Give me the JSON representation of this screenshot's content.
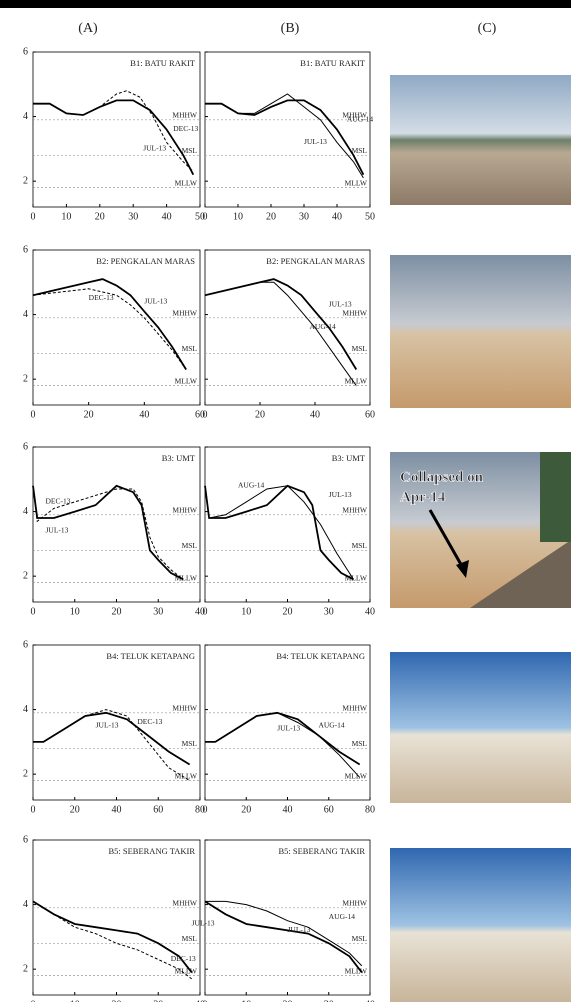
{
  "columns": [
    "(A)",
    "(B)",
    "(C)"
  ],
  "photo_annotation": [
    "Collapsed on",
    "Apr-14"
  ],
  "chart_data": [
    {
      "type": "line",
      "title": "B1: BATU RAKIT",
      "xlim": [
        0,
        50
      ],
      "xticks": [
        0,
        10,
        20,
        30,
        40,
        50
      ],
      "ylim": [
        1.2,
        6
      ],
      "yticks": [
        2,
        4,
        6
      ],
      "reference_lines": [
        {
          "label": "MHHW",
          "value": 3.9
        },
        {
          "label": "MSL",
          "value": 2.8
        },
        {
          "label": "MLLW",
          "value": 1.8
        }
      ],
      "series": [
        {
          "name": "JUL-13",
          "color": "#000000",
          "style": "solid",
          "x": [
            0,
            5,
            10,
            15,
            20,
            25,
            30,
            35,
            40,
            45,
            48
          ],
          "values": [
            4.4,
            4.4,
            4.1,
            4.05,
            4.3,
            4.5,
            4.5,
            4.2,
            3.6,
            2.8,
            2.2
          ]
        },
        {
          "name": "DEC-13",
          "color": "#000000",
          "style": "dashed",
          "x": [
            0,
            5,
            10,
            15,
            20,
            25,
            28,
            32,
            36,
            40,
            45,
            48
          ],
          "values": [
            4.4,
            4.4,
            4.1,
            4.05,
            4.3,
            4.7,
            4.8,
            4.6,
            4.0,
            3.2,
            2.6,
            2.3
          ]
        }
      ]
    },
    {
      "type": "line",
      "title": "B1: BATU RAKIT",
      "xlim": [
        0,
        50
      ],
      "xticks": [
        0,
        10,
        20,
        30,
        40,
        50
      ],
      "ylim": [
        1.2,
        6
      ],
      "yticks": [
        2,
        4,
        6
      ],
      "reference_lines": [
        {
          "label": "MHHW",
          "value": 3.9
        },
        {
          "label": "MSL",
          "value": 2.8
        },
        {
          "label": "MLLW",
          "value": 1.8
        }
      ],
      "series": [
        {
          "name": "JUL-13",
          "color": "#000000",
          "style": "solid",
          "x": [
            0,
            5,
            10,
            15,
            20,
            25,
            30,
            35,
            40,
            45,
            48
          ],
          "values": [
            4.4,
            4.4,
            4.1,
            4.05,
            4.3,
            4.5,
            4.5,
            4.2,
            3.6,
            2.8,
            2.2
          ]
        },
        {
          "name": "AUG-14",
          "color": "#000000",
          "style": "thin",
          "x": [
            0,
            5,
            10,
            15,
            20,
            25,
            30,
            35,
            40,
            45,
            48
          ],
          "values": [
            4.4,
            4.4,
            4.1,
            4.1,
            4.4,
            4.7,
            4.3,
            3.9,
            3.2,
            2.6,
            2.1
          ]
        }
      ]
    },
    {
      "type": "line",
      "title": "B2: PENGKALAN MARAS",
      "xlim": [
        0,
        60
      ],
      "xticks": [
        0,
        20,
        40,
        60
      ],
      "ylim": [
        1.2,
        6
      ],
      "yticks": [
        2,
        4,
        6
      ],
      "reference_lines": [
        {
          "label": "MHHW",
          "value": 3.9
        },
        {
          "label": "MSL",
          "value": 2.8
        },
        {
          "label": "MLLW",
          "value": 1.8
        }
      ],
      "series": [
        {
          "name": "JUL-13",
          "color": "#000000",
          "style": "solid",
          "x": [
            0,
            10,
            20,
            25,
            30,
            35,
            40,
            45,
            50,
            55
          ],
          "values": [
            4.6,
            4.8,
            5.0,
            5.1,
            4.9,
            4.6,
            4.1,
            3.6,
            3.0,
            2.3
          ]
        },
        {
          "name": "DEC-13",
          "color": "#000000",
          "style": "dashed",
          "x": [
            0,
            10,
            20,
            25,
            30,
            35,
            40,
            45,
            50,
            55
          ],
          "values": [
            4.6,
            4.7,
            4.8,
            4.7,
            4.6,
            4.3,
            3.9,
            3.4,
            2.9,
            2.3
          ]
        }
      ]
    },
    {
      "type": "line",
      "title": "B2: PENGKALAN MARAS",
      "xlim": [
        0,
        60
      ],
      "xticks": [
        0,
        20,
        40,
        60
      ],
      "ylim": [
        1.2,
        6
      ],
      "yticks": [
        2,
        4,
        6
      ],
      "reference_lines": [
        {
          "label": "MHHW",
          "value": 3.9
        },
        {
          "label": "MSL",
          "value": 2.8
        },
        {
          "label": "MLLW",
          "value": 1.8
        }
      ],
      "series": [
        {
          "name": "JUL-13",
          "color": "#000000",
          "style": "solid",
          "x": [
            0,
            10,
            20,
            25,
            30,
            35,
            40,
            45,
            50,
            55
          ],
          "values": [
            4.6,
            4.8,
            5.0,
            5.1,
            4.9,
            4.6,
            4.1,
            3.6,
            3.0,
            2.3
          ]
        },
        {
          "name": "AUG-14",
          "color": "#000000",
          "style": "thin",
          "x": [
            0,
            10,
            20,
            25,
            30,
            35,
            40,
            45,
            50,
            55
          ],
          "values": [
            4.6,
            4.8,
            5.0,
            5.0,
            4.6,
            4.1,
            3.6,
            3.0,
            2.4,
            1.8
          ]
        }
      ]
    },
    {
      "type": "line",
      "title": "B3: UMT",
      "xlim": [
        0,
        40
      ],
      "xticks": [
        0,
        10,
        20,
        30,
        40
      ],
      "ylim": [
        1.2,
        6
      ],
      "yticks": [
        2,
        4,
        6
      ],
      "reference_lines": [
        {
          "label": "MHHW",
          "value": 3.9
        },
        {
          "label": "MSL",
          "value": 2.8
        },
        {
          "label": "MLLW",
          "value": 1.8
        }
      ],
      "series": [
        {
          "name": "JUL-13",
          "color": "#000000",
          "style": "solid",
          "x": [
            0,
            1,
            5,
            10,
            15,
            20,
            24,
            26,
            28,
            30,
            33,
            36
          ],
          "values": [
            4.8,
            3.8,
            3.8,
            4.0,
            4.2,
            4.8,
            4.6,
            4.2,
            2.8,
            2.5,
            2.1,
            1.9
          ]
        },
        {
          "name": "DEC-13",
          "color": "#000000",
          "style": "dashed",
          "x": [
            0,
            1,
            5,
            10,
            15,
            20,
            24,
            26,
            28,
            30,
            33,
            36
          ],
          "values": [
            4.8,
            3.7,
            4.1,
            4.3,
            4.5,
            4.7,
            4.7,
            4.3,
            3.2,
            2.6,
            2.2,
            1.9
          ]
        }
      ]
    },
    {
      "type": "line",
      "title": "B3: UMT",
      "xlim": [
        0,
        40
      ],
      "xticks": [
        0,
        10,
        20,
        30,
        40
      ],
      "ylim": [
        1.2,
        6
      ],
      "yticks": [
        2,
        4,
        6
      ],
      "reference_lines": [
        {
          "label": "MHHW",
          "value": 3.9
        },
        {
          "label": "MSL",
          "value": 2.8
        },
        {
          "label": "MLLW",
          "value": 1.8
        }
      ],
      "series": [
        {
          "name": "JUL-13",
          "color": "#000000",
          "style": "solid",
          "x": [
            0,
            1,
            5,
            10,
            15,
            20,
            24,
            26,
            28,
            30,
            33,
            36
          ],
          "values": [
            4.8,
            3.8,
            3.8,
            4.0,
            4.2,
            4.8,
            4.6,
            4.2,
            2.8,
            2.5,
            2.1,
            1.9
          ]
        },
        {
          "name": "AUG-14",
          "color": "#000000",
          "style": "thin",
          "x": [
            0,
            1,
            5,
            10,
            15,
            20,
            24,
            28,
            32,
            36
          ],
          "values": [
            4.8,
            3.8,
            3.9,
            4.3,
            4.7,
            4.8,
            4.3,
            3.6,
            2.7,
            1.9
          ]
        }
      ]
    },
    {
      "type": "line",
      "title": "B4: TELUK KETAPANG",
      "xlim": [
        0,
        80
      ],
      "xticks": [
        0,
        20,
        40,
        60,
        80
      ],
      "ylim": [
        1.2,
        6
      ],
      "yticks": [
        2,
        4,
        6
      ],
      "reference_lines": [
        {
          "label": "MHHW",
          "value": 3.9
        },
        {
          "label": "MSL",
          "value": 2.8
        },
        {
          "label": "MLLW",
          "value": 1.8
        }
      ],
      "series": [
        {
          "name": "JUL-13",
          "color": "#000000",
          "style": "solid",
          "x": [
            0,
            5,
            15,
            25,
            35,
            45,
            55,
            65,
            75
          ],
          "values": [
            3.0,
            3.0,
            3.4,
            3.8,
            3.9,
            3.7,
            3.2,
            2.7,
            2.3
          ]
        },
        {
          "name": "DEC-13",
          "color": "#000000",
          "style": "dashed",
          "x": [
            0,
            5,
            15,
            25,
            35,
            45,
            55,
            65,
            75
          ],
          "values": [
            3.0,
            3.0,
            3.4,
            3.8,
            4.0,
            3.8,
            3.0,
            2.2,
            1.8
          ]
        }
      ]
    },
    {
      "type": "line",
      "title": "B4: TELUK KETAPANG",
      "xlim": [
        0,
        80
      ],
      "xticks": [
        0,
        20,
        40,
        60,
        80
      ],
      "ylim": [
        1.2,
        6
      ],
      "yticks": [
        2,
        4,
        6
      ],
      "reference_lines": [
        {
          "label": "MHHW",
          "value": 3.9
        },
        {
          "label": "MSL",
          "value": 2.8
        },
        {
          "label": "MLLW",
          "value": 1.8
        }
      ],
      "series": [
        {
          "name": "JUL-13",
          "color": "#000000",
          "style": "solid",
          "x": [
            0,
            5,
            15,
            25,
            35,
            45,
            55,
            65,
            75
          ],
          "values": [
            3.0,
            3.0,
            3.4,
            3.8,
            3.9,
            3.7,
            3.2,
            2.7,
            2.3
          ]
        },
        {
          "name": "AUG-14",
          "color": "#000000",
          "style": "thin",
          "x": [
            0,
            5,
            15,
            25,
            35,
            45,
            55,
            65,
            75
          ],
          "values": [
            3.0,
            3.0,
            3.4,
            3.8,
            3.9,
            3.6,
            3.2,
            2.6,
            1.9
          ]
        }
      ]
    },
    {
      "type": "line",
      "title": "B5: SEBERANG TAKIR",
      "xlim": [
        0,
        40
      ],
      "xticks": [
        0,
        10,
        20,
        30,
        40
      ],
      "ylim": [
        1.2,
        6
      ],
      "yticks": [
        2,
        4,
        6
      ],
      "reference_lines": [
        {
          "label": "MHHW",
          "value": 3.9
        },
        {
          "label": "MSL",
          "value": 2.8
        },
        {
          "label": "MLLW",
          "value": 1.8
        }
      ],
      "series": [
        {
          "name": "JUL-13",
          "color": "#000000",
          "style": "solid",
          "x": [
            0,
            5,
            10,
            15,
            20,
            25,
            30,
            35,
            38
          ],
          "values": [
            4.1,
            3.7,
            3.4,
            3.3,
            3.2,
            3.1,
            2.8,
            2.4,
            1.9
          ]
        },
        {
          "name": "DEC-13",
          "color": "#000000",
          "style": "dashed",
          "x": [
            0,
            5,
            10,
            15,
            20,
            25,
            30,
            35,
            38
          ],
          "values": [
            4.1,
            3.7,
            3.3,
            3.1,
            2.8,
            2.6,
            2.3,
            2.0,
            1.7
          ]
        }
      ]
    },
    {
      "type": "line",
      "title": "B5: SEBERANG TAKIR",
      "xlim": [
        0,
        40
      ],
      "xticks": [
        0,
        10,
        20,
        30,
        40
      ],
      "ylim": [
        1.2,
        6
      ],
      "yticks": [
        2,
        4,
        6
      ],
      "reference_lines": [
        {
          "label": "MHHW",
          "value": 3.9
        },
        {
          "label": "MSL",
          "value": 2.8
        },
        {
          "label": "MLLW",
          "value": 1.8
        }
      ],
      "series": [
        {
          "name": "JUL-13",
          "color": "#000000",
          "style": "solid",
          "x": [
            0,
            5,
            10,
            15,
            20,
            25,
            30,
            35,
            38
          ],
          "values": [
            4.1,
            3.7,
            3.4,
            3.3,
            3.2,
            3.1,
            2.8,
            2.4,
            1.9
          ]
        },
        {
          "name": "AUG-14",
          "color": "#000000",
          "style": "thin",
          "x": [
            0,
            5,
            10,
            15,
            20,
            25,
            30,
            35,
            38
          ],
          "values": [
            4.1,
            4.1,
            4.0,
            3.8,
            3.5,
            3.3,
            2.9,
            2.5,
            2.1
          ]
        }
      ]
    }
  ]
}
